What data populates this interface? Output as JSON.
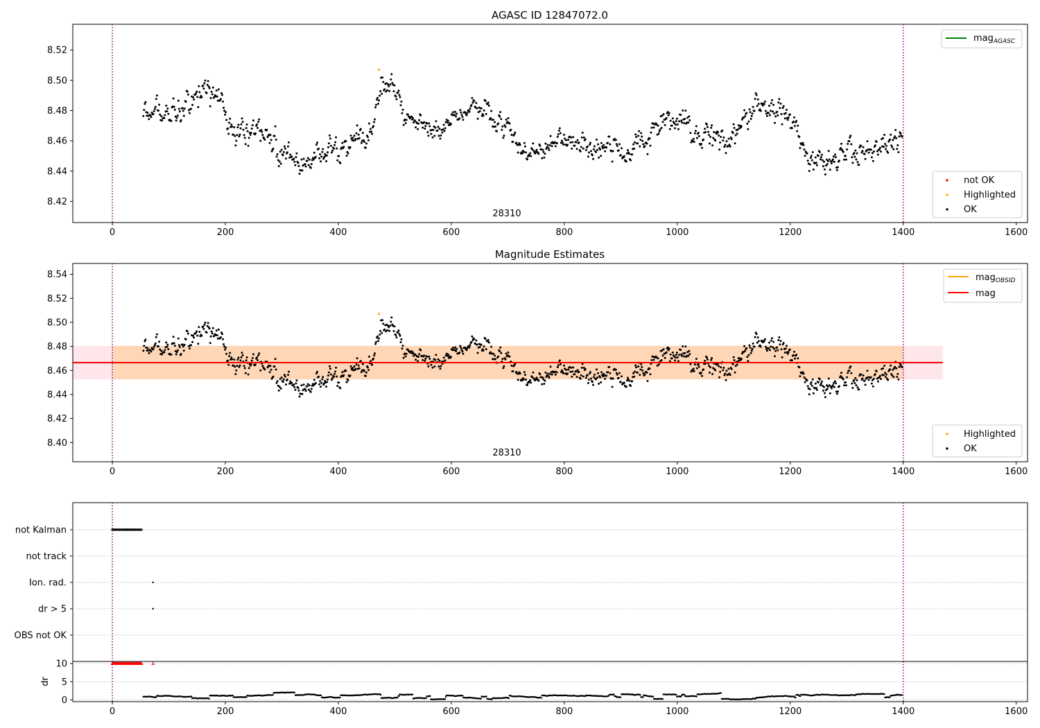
{
  "chart_data": [
    {
      "type": "scatter",
      "title": "AGASC ID 12847072.0",
      "annotation": "28310",
      "xlim": [
        -70,
        1620
      ],
      "ylim": [
        8.406,
        8.537
      ],
      "xticks": [
        0,
        200,
        400,
        600,
        800,
        1000,
        1200,
        1400,
        1600
      ],
      "yticks": [
        8.42,
        8.44,
        8.46,
        8.48,
        8.5,
        8.52
      ],
      "vlines": [
        0,
        1400
      ],
      "legend_lines": [
        {
          "name": "mag",
          "sub": "AGASC",
          "color": "#008000"
        }
      ],
      "legend_points": [
        {
          "name": "not OK",
          "color": "#ff0000"
        },
        {
          "name": "Highlighted",
          "color": "#ffa500"
        },
        {
          "name": "OK",
          "color": "#000000"
        }
      ],
      "highlighted": [
        {
          "x": 472,
          "y": 8.507
        }
      ],
      "trend": [
        {
          "x": 55,
          "y": 8.482
        },
        {
          "x": 100,
          "y": 8.478
        },
        {
          "x": 150,
          "y": 8.492
        },
        {
          "x": 185,
          "y": 8.49
        },
        {
          "x": 215,
          "y": 8.466
        },
        {
          "x": 260,
          "y": 8.468
        },
        {
          "x": 300,
          "y": 8.452
        },
        {
          "x": 350,
          "y": 8.447
        },
        {
          "x": 400,
          "y": 8.454
        },
        {
          "x": 450,
          "y": 8.463
        },
        {
          "x": 475,
          "y": 8.492
        },
        {
          "x": 495,
          "y": 8.502
        },
        {
          "x": 520,
          "y": 8.476
        },
        {
          "x": 580,
          "y": 8.47
        },
        {
          "x": 640,
          "y": 8.48
        },
        {
          "x": 680,
          "y": 8.475
        },
        {
          "x": 740,
          "y": 8.45
        },
        {
          "x": 800,
          "y": 8.462
        },
        {
          "x": 860,
          "y": 8.455
        },
        {
          "x": 920,
          "y": 8.452
        },
        {
          "x": 980,
          "y": 8.476
        },
        {
          "x": 1030,
          "y": 8.468
        },
        {
          "x": 1080,
          "y": 8.457
        },
        {
          "x": 1140,
          "y": 8.483
        },
        {
          "x": 1200,
          "y": 8.478
        },
        {
          "x": 1235,
          "y": 8.446
        },
        {
          "x": 1300,
          "y": 8.45
        },
        {
          "x": 1350,
          "y": 8.455
        },
        {
          "x": 1398,
          "y": 8.458
        }
      ],
      "series_range": [
        55,
        1398
      ],
      "spread": 0.0065
    },
    {
      "type": "scatter",
      "title": "Magnitude Estimates",
      "annotation": "28310",
      "xlim": [
        -70,
        1620
      ],
      "ylim": [
        8.384,
        8.549
      ],
      "xticks": [
        0,
        200,
        400,
        600,
        800,
        1000,
        1200,
        1400,
        1600
      ],
      "yticks": [
        8.4,
        8.42,
        8.44,
        8.46,
        8.48,
        8.5,
        8.52,
        8.54
      ],
      "vlines": [
        0,
        1400
      ],
      "mag": 8.4665,
      "band": [
        8.4525,
        8.4805
      ],
      "band_x": [
        -70,
        1470
      ],
      "obsid_band_x": [
        0,
        1400
      ],
      "legend_lines": [
        {
          "name": "mag",
          "sub": "OBSID",
          "color": "#ffa500"
        },
        {
          "name": "mag",
          "sub": "",
          "color": "#ff0000"
        }
      ],
      "legend_points": [
        {
          "name": "Highlighted",
          "color": "#ffa500"
        },
        {
          "name": "OK",
          "color": "#000000"
        }
      ],
      "highlighted": [
        {
          "x": 472,
          "y": 8.507
        }
      ]
    },
    {
      "type": "scatter",
      "title": "",
      "xlim": [
        -70,
        1620
      ],
      "categories": [
        "not Kalman",
        "not track",
        "Ion. rad.",
        "dr > 5",
        "OBS not OK"
      ],
      "flags": {
        "not Kalman": {
          "x_range": [
            0,
            52
          ]
        },
        "Ion. rad.": {
          "x": [
            72
          ]
        },
        "dr > 5": {
          "x": [
            72
          ]
        }
      },
      "vlines": [
        0,
        1400
      ]
    },
    {
      "type": "scatter",
      "title": "",
      "ylabel": "dr",
      "xlim": [
        -70,
        1620
      ],
      "ylim": [
        -0.5,
        10.6
      ],
      "xticks": [
        0,
        200,
        400,
        600,
        800,
        1000,
        1200,
        1400,
        1600
      ],
      "yticks": [
        0,
        5,
        10
      ],
      "vlines": [
        0,
        1400
      ],
      "capped_value": 10,
      "capped_x_range": [
        0,
        52
      ],
      "capped_extra_x": [
        72
      ],
      "dr_range": [
        55,
        1398
      ],
      "dr_level_mean": 0.9,
      "dr_level_peak": 2.0
    }
  ]
}
